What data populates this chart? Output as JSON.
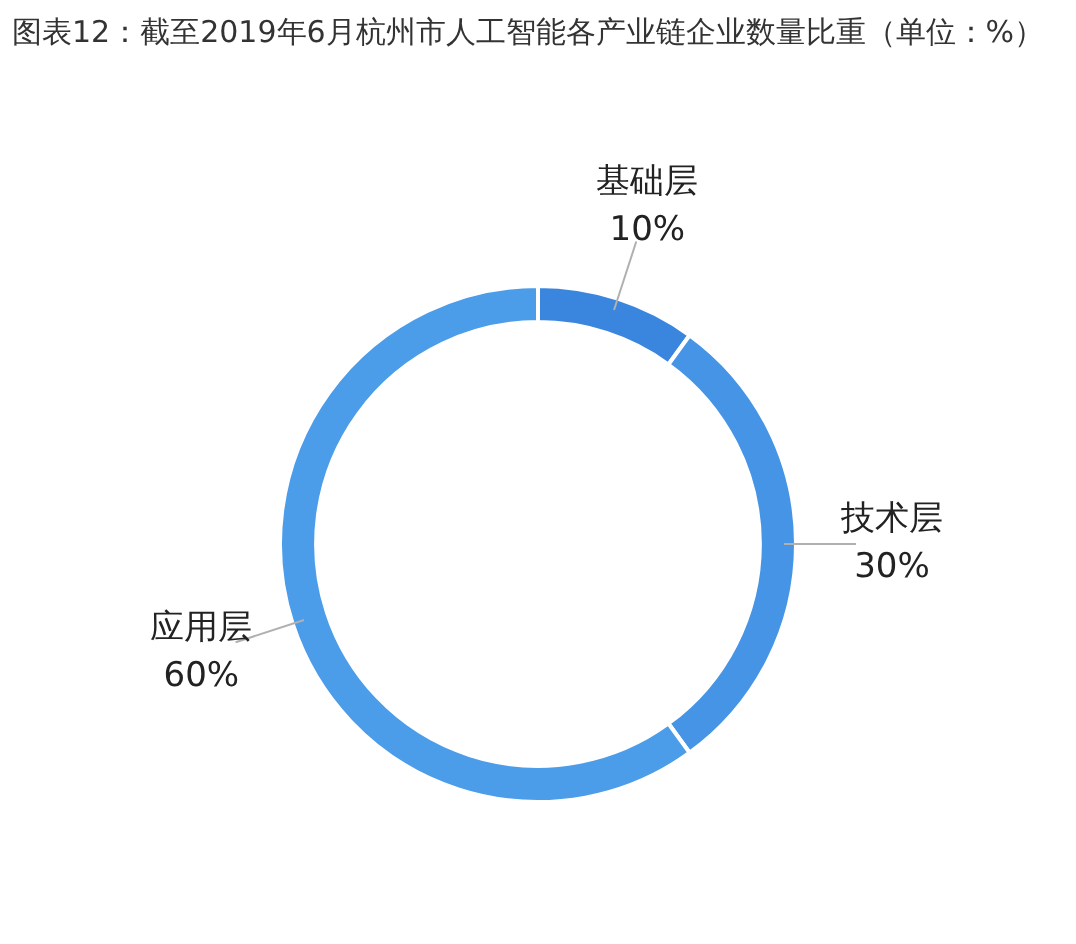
{
  "chart_data": {
    "type": "donut",
    "title": "图表12：截至2019年6月杭州市人工智能各产业链企业数量比重（单位：%）",
    "categories": [
      "基础层",
      "技术层",
      "应用层"
    ],
    "values": [
      10,
      30,
      60
    ],
    "value_labels": [
      "10%",
      "30%",
      "60%"
    ],
    "colors": [
      "#3a86df",
      "#4594e6",
      "#4b9ce9"
    ],
    "legend": false
  }
}
